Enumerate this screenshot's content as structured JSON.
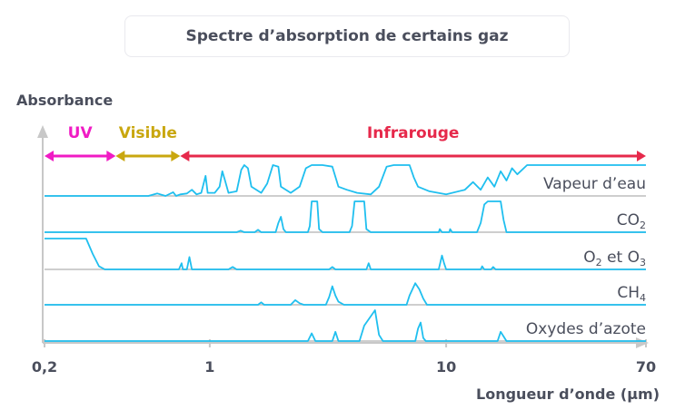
{
  "title": "Spectre d’absorption de certains gaz",
  "colors": {
    "curve": "#1fbfef",
    "baseline": "#bdbdbd",
    "axis": "#c8c8c8",
    "text": "#4a4e5c",
    "uv": "#f01bc4",
    "visible": "#c9a70f",
    "infrared": "#e6294b"
  },
  "chart_data": {
    "type": "line",
    "title": "Spectre d’absorption de certains gaz",
    "xlabel": "Longueur d’onde (µm)",
    "ylabel": "Absorbance",
    "x_scale": "log",
    "xlim": [
      0.2,
      70
    ],
    "x_ticks": [
      {
        "label": "0,2",
        "value": 0.2
      },
      {
        "label": "1",
        "value": 1
      },
      {
        "label": "10",
        "value": 10
      },
      {
        "label": "70",
        "value": 70
      }
    ],
    "regions": [
      {
        "name": "UV",
        "from": 0.2,
        "to": 0.4,
        "color": "#f01bc4"
      },
      {
        "name": "Visible",
        "from": 0.4,
        "to": 0.75,
        "color": "#c9a70f"
      },
      {
        "name": "Infrarouge",
        "from": 0.75,
        "to": 70,
        "color": "#e6294b"
      }
    ],
    "series": [
      {
        "name": "Vapeur d’eau",
        "label_segments": [
          {
            "text": "Vapeur d’eau",
            "sub": false
          }
        ],
        "points": [
          [
            0.2,
            0
          ],
          [
            0.55,
            0
          ],
          [
            0.6,
            0.08
          ],
          [
            0.65,
            0
          ],
          [
            0.7,
            0.12
          ],
          [
            0.72,
            0
          ],
          [
            0.75,
            0.05
          ],
          [
            0.8,
            0.08
          ],
          [
            0.84,
            0.2
          ],
          [
            0.88,
            0.05
          ],
          [
            0.92,
            0.1
          ],
          [
            0.96,
            0.65
          ],
          [
            0.98,
            0.1
          ],
          [
            1.05,
            0.1
          ],
          [
            1.1,
            0.3
          ],
          [
            1.13,
            0.8
          ],
          [
            1.16,
            0.5
          ],
          [
            1.2,
            0.1
          ],
          [
            1.3,
            0.15
          ],
          [
            1.36,
            0.85
          ],
          [
            1.4,
            1.0
          ],
          [
            1.45,
            0.9
          ],
          [
            1.5,
            0.3
          ],
          [
            1.65,
            0.1
          ],
          [
            1.75,
            0.4
          ],
          [
            1.85,
            1.0
          ],
          [
            1.95,
            0.95
          ],
          [
            2.0,
            0.3
          ],
          [
            2.2,
            0.1
          ],
          [
            2.4,
            0.3
          ],
          [
            2.55,
            0.9
          ],
          [
            2.7,
            1.0
          ],
          [
            3.0,
            1.0
          ],
          [
            3.3,
            0.95
          ],
          [
            3.5,
            0.3
          ],
          [
            3.8,
            0.2
          ],
          [
            4.2,
            0.1
          ],
          [
            4.8,
            0.05
          ],
          [
            5.2,
            0.3
          ],
          [
            5.6,
            0.95
          ],
          [
            6.0,
            1.0
          ],
          [
            7.0,
            1.0
          ],
          [
            7.3,
            0.6
          ],
          [
            7.6,
            0.3
          ],
          [
            8.5,
            0.15
          ],
          [
            10.0,
            0.05
          ],
          [
            12.0,
            0.2
          ],
          [
            13.0,
            0.45
          ],
          [
            14.0,
            0.2
          ],
          [
            15.0,
            0.6
          ],
          [
            16.0,
            0.3
          ],
          [
            17.0,
            0.8
          ],
          [
            18.0,
            0.5
          ],
          [
            19.0,
            0.9
          ],
          [
            20.0,
            0.7
          ],
          [
            22.0,
            1.0
          ],
          [
            70,
            1.0
          ]
        ]
      },
      {
        "name": "CO2",
        "label_segments": [
          {
            "text": "CO",
            "sub": false
          },
          {
            "text": "2",
            "sub": true
          }
        ],
        "points": [
          [
            0.2,
            0
          ],
          [
            1.3,
            0
          ],
          [
            1.35,
            0.05
          ],
          [
            1.4,
            0
          ],
          [
            1.55,
            0
          ],
          [
            1.6,
            0.08
          ],
          [
            1.65,
            0
          ],
          [
            1.9,
            0
          ],
          [
            1.95,
            0.3
          ],
          [
            2.0,
            0.5
          ],
          [
            2.05,
            0.1
          ],
          [
            2.1,
            0
          ],
          [
            2.6,
            0
          ],
          [
            2.65,
            0.2
          ],
          [
            2.7,
            1.0
          ],
          [
            2.85,
            1.0
          ],
          [
            2.9,
            0.1
          ],
          [
            3.0,
            0
          ],
          [
            3.9,
            0
          ],
          [
            4.0,
            0.2
          ],
          [
            4.1,
            1.0
          ],
          [
            4.5,
            1.0
          ],
          [
            4.6,
            0.1
          ],
          [
            4.8,
            0
          ],
          [
            9.3,
            0
          ],
          [
            9.4,
            0.1
          ],
          [
            9.6,
            0
          ],
          [
            10.3,
            0
          ],
          [
            10.4,
            0.1
          ],
          [
            10.6,
            0
          ],
          [
            13.5,
            0
          ],
          [
            14.0,
            0.3
          ],
          [
            14.5,
            0.9
          ],
          [
            15.0,
            1.0
          ],
          [
            17.0,
            1.0
          ],
          [
            17.5,
            0.4
          ],
          [
            18.0,
            0
          ],
          [
            70,
            0
          ]
        ]
      },
      {
        "name": "O2 et O3",
        "label_segments": [
          {
            "text": "O",
            "sub": false
          },
          {
            "text": "2",
            "sub": true
          },
          {
            "text": " et O",
            "sub": false
          },
          {
            "text": "3",
            "sub": true
          }
        ],
        "points": [
          [
            0.2,
            1.0
          ],
          [
            0.3,
            1.0
          ],
          [
            0.32,
            0.5
          ],
          [
            0.34,
            0.1
          ],
          [
            0.36,
            0
          ],
          [
            0.74,
            0
          ],
          [
            0.76,
            0.2
          ],
          [
            0.77,
            0
          ],
          [
            0.8,
            0
          ],
          [
            0.82,
            0.4
          ],
          [
            0.84,
            0
          ],
          [
            1.2,
            0
          ],
          [
            1.25,
            0.08
          ],
          [
            1.3,
            0
          ],
          [
            3.2,
            0
          ],
          [
            3.3,
            0.08
          ],
          [
            3.4,
            0
          ],
          [
            4.6,
            0
          ],
          [
            4.7,
            0.2
          ],
          [
            4.8,
            0
          ],
          [
            9.3,
            0
          ],
          [
            9.5,
            0.3
          ],
          [
            9.6,
            0.45
          ],
          [
            9.8,
            0.2
          ],
          [
            10.0,
            0
          ],
          [
            14.0,
            0
          ],
          [
            14.2,
            0.1
          ],
          [
            14.5,
            0
          ],
          [
            15.5,
            0
          ],
          [
            15.8,
            0.08
          ],
          [
            16.2,
            0
          ],
          [
            70,
            0
          ]
        ]
      },
      {
        "name": "CH4",
        "label_segments": [
          {
            "text": "CH",
            "sub": false
          },
          {
            "text": "4",
            "sub": true
          }
        ],
        "points": [
          [
            0.2,
            0
          ],
          [
            1.6,
            0
          ],
          [
            1.65,
            0.08
          ],
          [
            1.7,
            0
          ],
          [
            2.2,
            0
          ],
          [
            2.3,
            0.15
          ],
          [
            2.4,
            0.05
          ],
          [
            2.5,
            0
          ],
          [
            3.1,
            0
          ],
          [
            3.2,
            0.25
          ],
          [
            3.3,
            0.6
          ],
          [
            3.4,
            0.3
          ],
          [
            3.5,
            0.1
          ],
          [
            3.7,
            0
          ],
          [
            6.8,
            0
          ],
          [
            7.0,
            0.3
          ],
          [
            7.4,
            0.7
          ],
          [
            7.7,
            0.5
          ],
          [
            8.0,
            0.2
          ],
          [
            8.3,
            0
          ],
          [
            70,
            0
          ]
        ]
      },
      {
        "name": "Oxydes d’azote",
        "label_segments": [
          {
            "text": "Oxydes d’azote",
            "sub": false
          }
        ],
        "points": [
          [
            0.2,
            0
          ],
          [
            2.6,
            0
          ],
          [
            2.7,
            0.25
          ],
          [
            2.8,
            0
          ],
          [
            3.3,
            0
          ],
          [
            3.4,
            0.3
          ],
          [
            3.5,
            0
          ],
          [
            4.3,
            0
          ],
          [
            4.5,
            0.5
          ],
          [
            5.0,
            1.0
          ],
          [
            5.2,
            0.2
          ],
          [
            5.4,
            0
          ],
          [
            7.4,
            0
          ],
          [
            7.6,
            0.4
          ],
          [
            7.8,
            0.6
          ],
          [
            8.0,
            0.1
          ],
          [
            8.2,
            0
          ],
          [
            16.5,
            0
          ],
          [
            17.0,
            0.3
          ],
          [
            17.5,
            0.15
          ],
          [
            18.0,
            0
          ],
          [
            70,
            0
          ]
        ]
      }
    ]
  }
}
